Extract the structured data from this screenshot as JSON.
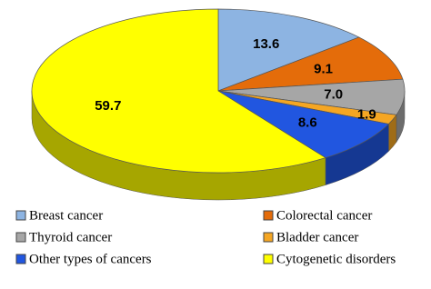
{
  "chart_data": {
    "type": "pie",
    "categories": [
      "Breast cancer",
      "Colorectal cancer",
      "Thyroid cancer",
      "Bladder cancer",
      "Other types of cancers",
      "Cytogenetic disorders"
    ],
    "values": [
      13.6,
      9.1,
      7.0,
      1.9,
      8.6,
      59.7
    ],
    "value_labels": [
      "13.6",
      "9.1",
      "7.0",
      "1.9",
      "8.6",
      "59.7"
    ],
    "colors": [
      "#8db4e2",
      "#e46c0a",
      "#a6a6a6",
      "#f5a623",
      "#2156e0",
      "#ffff00"
    ],
    "legend": "bottom"
  }
}
